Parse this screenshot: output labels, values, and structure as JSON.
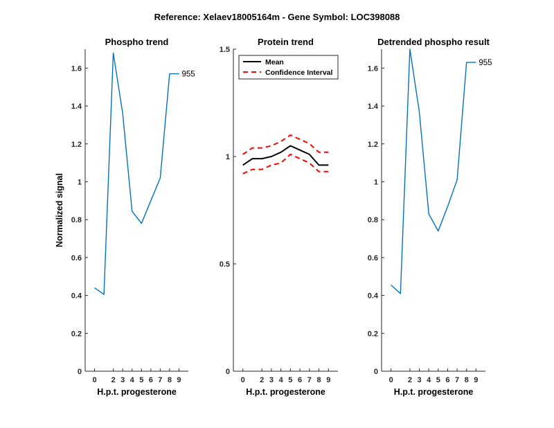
{
  "figure_title": "Reference:  Xelaev18005164m - Gene Symbol:  LOC398088",
  "chart_data": [
    {
      "type": "line",
      "title": "Phospho trend",
      "xlabel": "H.p.t. progesterone",
      "ylabel": "Normalized signal",
      "x_ticks": [
        "0",
        "1",
        "2",
        "3",
        "4",
        "5",
        "6",
        "7",
        "8",
        "9"
      ],
      "xlim": [
        -1,
        10
      ],
      "ylim": [
        0,
        1.7
      ],
      "y_ticks": [
        "0",
        "0.2",
        "0.4",
        "0.6",
        "0.8",
        "1",
        "1.2",
        "1.4",
        "1.6"
      ],
      "y_tick_values": [
        0,
        0.2,
        0.4,
        0.6,
        0.8,
        1.0,
        1.2,
        1.4,
        1.6
      ],
      "series": [
        {
          "x": [
            0,
            1,
            2,
            3,
            4,
            5,
            6,
            7,
            8,
            9
          ],
          "y": [
            0.44,
            0.405,
            1.68,
            1.36,
            0.845,
            0.78,
            0.9,
            1.02,
            1.57,
            1.57
          ],
          "color": "#0072BD"
        }
      ],
      "annotation": {
        "text": "955",
        "x": 9,
        "y": 1.57
      }
    },
    {
      "type": "line",
      "title": "Protein trend",
      "xlabel": "H.p.t. progesterone",
      "ylabel": "",
      "x_ticks": [
        "0",
        "1",
        "2",
        "3",
        "4",
        "5",
        "6",
        "7",
        "8",
        "9"
      ],
      "xlim": [
        -1,
        10
      ],
      "ylim": [
        0,
        1.5
      ],
      "y_ticks": [
        "0",
        "0.5",
        "1",
        "1.5"
      ],
      "y_tick_values": [
        0,
        0.5,
        1.0,
        1.5
      ],
      "series": [
        {
          "name": "Mean",
          "x": [
            0,
            1,
            2,
            3,
            4,
            5,
            6,
            7,
            8,
            9
          ],
          "y": [
            0.96,
            0.99,
            0.99,
            1.0,
            1.02,
            1.05,
            1.03,
            1.01,
            0.96,
            0.96
          ],
          "color": "#000000",
          "style": "solid"
        },
        {
          "name": "Confidence Interval",
          "x": [
            0,
            1,
            2,
            3,
            4,
            5,
            6,
            7,
            8,
            9
          ],
          "y": [
            1.01,
            1.04,
            1.04,
            1.05,
            1.07,
            1.1,
            1.08,
            1.06,
            1.02,
            1.02
          ],
          "color": "#FF0000",
          "style": "dashed"
        },
        {
          "x": [
            0,
            1,
            2,
            3,
            4,
            5,
            6,
            7,
            8,
            9
          ],
          "y": [
            0.92,
            0.94,
            0.94,
            0.96,
            0.97,
            1.01,
            0.99,
            0.97,
            0.93,
            0.93
          ],
          "color": "#FF0000",
          "style": "dashed"
        }
      ],
      "legend": {
        "location": "top-right",
        "entries": [
          "Mean",
          "Confidence Interval"
        ]
      }
    },
    {
      "type": "line",
      "title": "Detrended phospho result",
      "xlabel": "H.p.t. progesterone",
      "ylabel": "",
      "x_ticks": [
        "0",
        "1",
        "2",
        "3",
        "4",
        "5",
        "6",
        "7",
        "8",
        "9"
      ],
      "xlim": [
        -1,
        10
      ],
      "ylim": [
        0,
        1.7
      ],
      "y_ticks": [
        "0",
        "0.2",
        "0.4",
        "0.6",
        "0.8",
        "1",
        "1.2",
        "1.4",
        "1.6"
      ],
      "y_tick_values": [
        0,
        0.2,
        0.4,
        0.6,
        0.8,
        1.0,
        1.2,
        1.4,
        1.6
      ],
      "series": [
        {
          "x": [
            0,
            1,
            2,
            3,
            4,
            5,
            6,
            7,
            8,
            9
          ],
          "y": [
            0.455,
            0.41,
            1.7,
            1.37,
            0.83,
            0.74,
            0.87,
            1.01,
            1.63,
            1.63
          ],
          "color": "#0072BD"
        }
      ],
      "annotation": {
        "text": "955",
        "x": 9,
        "y": 1.63
      }
    }
  ]
}
